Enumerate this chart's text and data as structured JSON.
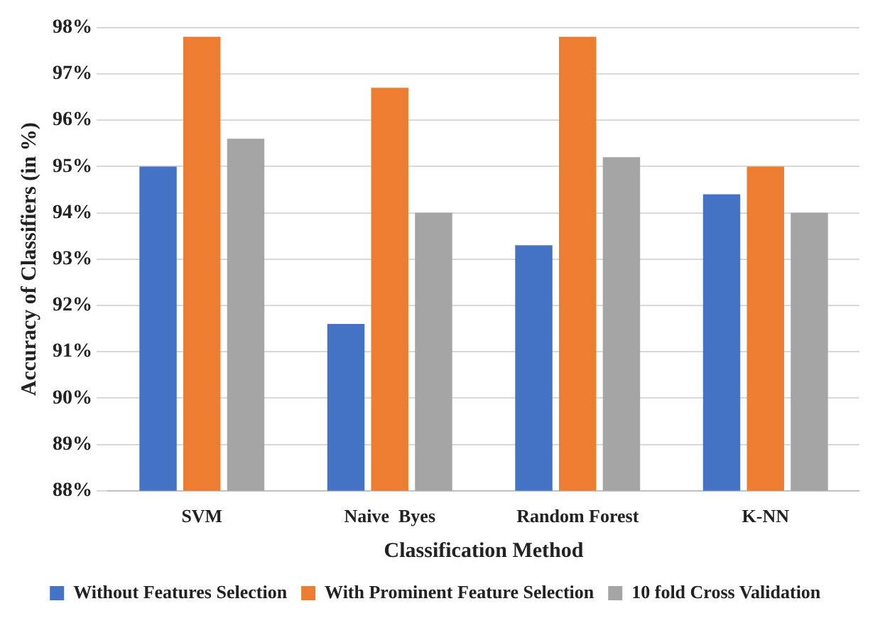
{
  "chart_data": {
    "type": "bar",
    "xlabel": "Classification Method",
    "ylabel": "Accuracy of Classifiers (in %)",
    "categories": [
      "SVM",
      "Naive  Byes",
      "Random Forest",
      "K-NN"
    ],
    "series": [
      {
        "name": "Without Features Selection",
        "color": "#4472c4",
        "values": [
          95.0,
          91.6,
          93.3,
          94.4
        ]
      },
      {
        "name": "With Prominent Feature Selection",
        "color": "#ed7d31",
        "values": [
          97.8,
          96.7,
          97.8,
          95.0
        ]
      },
      {
        "name": "10 fold Cross Validation",
        "color": "#a5a5a5",
        "values": [
          95.6,
          94.0,
          95.2,
          94.0
        ]
      }
    ],
    "ylim": [
      88,
      98
    ],
    "yticks": [
      {
        "value": 88,
        "label": "88%"
      },
      {
        "value": 89,
        "label": "89%"
      },
      {
        "value": 90,
        "label": "90%"
      },
      {
        "value": 91,
        "label": "91%"
      },
      {
        "value": 92,
        "label": "92%"
      },
      {
        "value": 93,
        "label": "93%"
      },
      {
        "value": 94,
        "label": "94%"
      },
      {
        "value": 95,
        "label": "95%"
      },
      {
        "value": 96,
        "label": "96%"
      },
      {
        "value": 97,
        "label": "97%"
      },
      {
        "value": 98,
        "label": "98%"
      }
    ],
    "grid": "y",
    "legend": "bottom"
  }
}
